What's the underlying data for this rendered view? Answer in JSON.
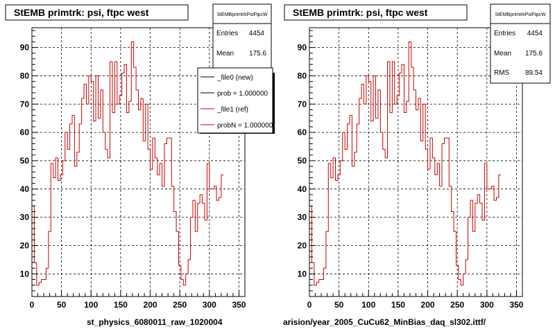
{
  "chart_data": [
    {
      "type": "histogram",
      "title": "StEMB primtrk: psi, ftpc west",
      "xlim": [
        0,
        360
      ],
      "ylim": [
        2,
        97
      ],
      "xticks": [
        0,
        50,
        100,
        150,
        200,
        250,
        300,
        350
      ],
      "yticks": [
        10,
        20,
        30,
        40,
        50,
        60,
        70,
        80,
        90
      ],
      "grid": true,
      "bin_width": 4,
      "series": [
        {
          "color": "#cc0000",
          "values": [
            34,
            14,
            6,
            7,
            8,
            8,
            12,
            25,
            49,
            44,
            51,
            43,
            45,
            50,
            60,
            54,
            63,
            66,
            48,
            53,
            63,
            72,
            77,
            70,
            80,
            78,
            64,
            80,
            65,
            75,
            60,
            54,
            51,
            85,
            67,
            85,
            70,
            73,
            81,
            84,
            67,
            71,
            92,
            83,
            75,
            68,
            72,
            57,
            70,
            54,
            47,
            58,
            51,
            45,
            49,
            41,
            56,
            58,
            58,
            41,
            32,
            25,
            13,
            8,
            6,
            10,
            15,
            30,
            36,
            25,
            35,
            38,
            35,
            29,
            49,
            40,
            40,
            41,
            36,
            37,
            45
          ]
        }
      ],
      "stats": {
        "name": "StEMBprimtrkPsiFtpcW",
        "entries_label": "Entries",
        "entries": "4454",
        "mean_label": "Mean",
        "mean": "175.6"
      },
      "legend": {
        "placement": "top-right",
        "entries": [
          {
            "label": "_file0 (new)",
            "color": "#000000"
          },
          {
            "label": "prob = 1.000000",
            "color": "#000000"
          },
          {
            "label": "_file1 (ref)",
            "color": "#cc0000"
          },
          {
            "label": "probN = 1.000000",
            "color": "#cc0000"
          }
        ]
      },
      "footer": "st_physics_6080011_raw_1020004"
    },
    {
      "type": "histogram",
      "title": "StEMB primtrk: psi, ftpc west",
      "xlim": [
        0,
        360
      ],
      "ylim": [
        2,
        97
      ],
      "xticks": [
        0,
        50,
        100,
        150,
        200,
        250,
        300,
        350
      ],
      "yticks": [
        10,
        20,
        30,
        40,
        50,
        60,
        70,
        80,
        90
      ],
      "grid": true,
      "bin_width": 4,
      "series": [
        {
          "color": "#cc0000",
          "values": [
            34,
            14,
            6,
            7,
            8,
            8,
            12,
            25,
            49,
            44,
            51,
            43,
            45,
            50,
            60,
            54,
            63,
            66,
            48,
            53,
            63,
            72,
            77,
            70,
            80,
            78,
            64,
            80,
            65,
            75,
            60,
            54,
            51,
            85,
            67,
            85,
            70,
            73,
            81,
            84,
            67,
            71,
            92,
            83,
            75,
            68,
            72,
            57,
            70,
            54,
            47,
            58,
            51,
            45,
            49,
            41,
            56,
            58,
            58,
            41,
            32,
            25,
            13,
            8,
            6,
            10,
            15,
            30,
            36,
            25,
            35,
            38,
            35,
            29,
            49,
            40,
            40,
            41,
            36,
            37,
            45
          ]
        }
      ],
      "stats": {
        "name": "StEMBprimtrkPsiFtpcW",
        "entries_label": "Entries",
        "entries": "4454",
        "mean_label": "Mean",
        "mean": "175.6",
        "rms_label": "RMS",
        "rms": "89.54"
      },
      "footer": "arision/year_2005_CuCu62_MinBias_daq_sl302.ittf/"
    }
  ]
}
